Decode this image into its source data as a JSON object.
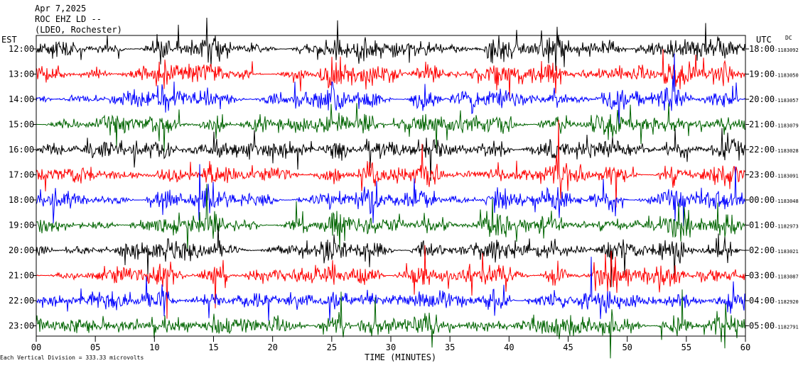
{
  "header": {
    "date": "Apr 7,2025",
    "station": "ROC EHZ LD --",
    "network": "(LDEO, Rochester)"
  },
  "left_zone": "EST",
  "right_zone": "UTC",
  "dc_label": "DC",
  "footer": "Each Vertical Division = 333.33 microvolts",
  "chart_data": {
    "type": "line",
    "title": "",
    "xlabel": "TIME (MINUTES)",
    "xlim": [
      0,
      60
    ],
    "x_ticks": [
      "00",
      "05",
      "10",
      "15",
      "20",
      "25",
      "30",
      "35",
      "40",
      "45",
      "50",
      "55",
      "60"
    ],
    "trace_colors": [
      "#000000",
      "#ff0000",
      "#0000ff",
      "#006400"
    ],
    "rows": [
      {
        "est": "12:00",
        "utc": "18:00",
        "dc": "-1183092"
      },
      {
        "est": "13:00",
        "utc": "19:00",
        "dc": "-1183050"
      },
      {
        "est": "14:00",
        "utc": "20:00",
        "dc": "-1183057"
      },
      {
        "est": "15:00",
        "utc": "21:00",
        "dc": "-1183079"
      },
      {
        "est": "16:00",
        "utc": "22:00",
        "dc": "-1183028"
      },
      {
        "est": "17:00",
        "utc": "23:00",
        "dc": "-1183091"
      },
      {
        "est": "18:00",
        "utc": "00:00",
        "dc": "-1183048"
      },
      {
        "est": "19:00",
        "utc": "01:00",
        "dc": "-1182973"
      },
      {
        "est": "20:00",
        "utc": "02:00",
        "dc": "-1183021"
      },
      {
        "est": "21:00",
        "utc": "03:00",
        "dc": "-1183087"
      },
      {
        "est": "22:00",
        "utc": "04:00",
        "dc": "-1182920"
      },
      {
        "est": "23:00",
        "utc": "05:00",
        "dc": "-1182791"
      }
    ]
  }
}
